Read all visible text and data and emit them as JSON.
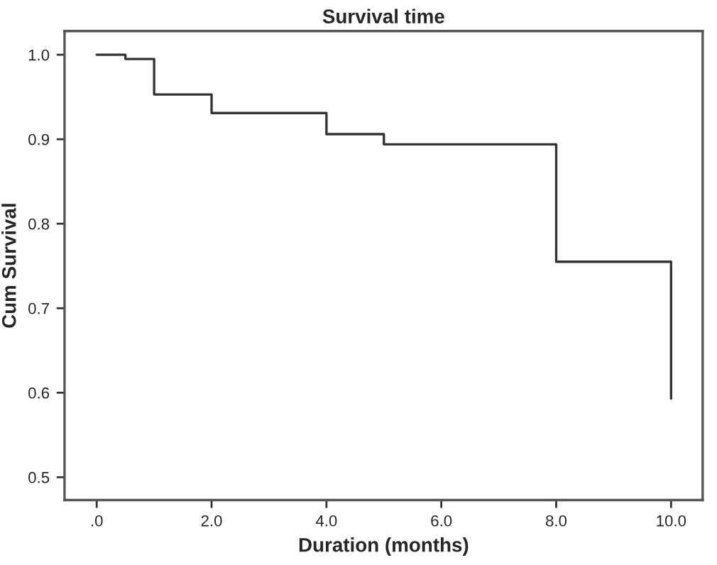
{
  "chart_data": {
    "type": "step",
    "title": "Survival time",
    "xlabel": "Duration (months)",
    "ylabel": "Cum Survival",
    "x": [
      0,
      0.5,
      1,
      2,
      4,
      5,
      8,
      10
    ],
    "series": [
      {
        "color": "#333333",
        "values": [
          1.0,
          0.995,
          0.953,
          0.931,
          0.906,
          0.894,
          0.755,
          0.593
        ]
      }
    ],
    "xlim": [
      -0.56,
      10.55
    ],
    "ylim": [
      0.473,
      1.028
    ],
    "xticks": [
      {
        "value": 0,
        "label": ".0"
      },
      {
        "value": 2,
        "label": "2.0"
      },
      {
        "value": 4,
        "label": "4.0"
      },
      {
        "value": 6,
        "label": "6.0"
      },
      {
        "value": 8,
        "label": "8.0"
      },
      {
        "value": 10,
        "label": "10.0"
      }
    ],
    "yticks": [
      {
        "value": 0.5,
        "label": "0.5"
      },
      {
        "value": 0.6,
        "label": "0.6"
      },
      {
        "value": 0.7,
        "label": "0.7"
      },
      {
        "value": 0.8,
        "label": "0.8"
      },
      {
        "value": 0.9,
        "label": "0.9"
      },
      {
        "value": 1.0,
        "label": "1.0"
      }
    ],
    "grid": false
  }
}
